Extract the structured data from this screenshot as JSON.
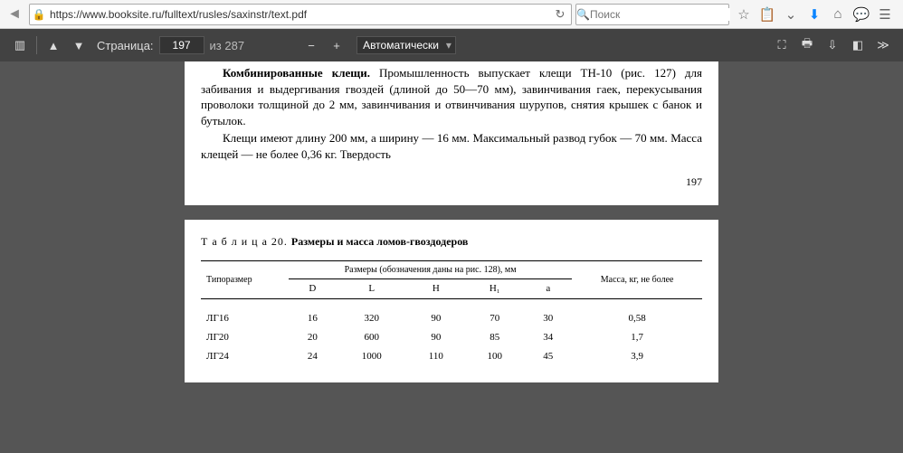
{
  "url": "https://www.booksite.ru/fulltext/rusles/saxinstr/text.pdf",
  "search_placeholder": "Поиск",
  "pdf": {
    "page_label": "Страница:",
    "current": "197",
    "total_label": "из 287",
    "zoom_label": "Автоматически"
  },
  "doc": {
    "p1_l1_bold": "Комбинированные клещи.",
    "p1_l1_rest": " Промышленность выпускает клещи ТН-10 (рис. 127) для забивания и выдергивания гвоздей (длиной до 50—70 мм), завинчивания гаек, перекусывания проволоки толщиной до 2 мм, завинчивания и отвинчивания шурупов, снятия крышек с банок и бутылок.",
    "p1_l2": "Клещи имеют длину 200 мм, а ширину — 16 мм. Максимальный развод губок — 70 мм. Масса клещей — не более 0,36 кг. Твердость",
    "page_num": "197",
    "table_prefix": "Т а б л и ц а   20. ",
    "table_title": "Размеры и масса ломов-гвоздодеров",
    "col_type": "Типоразмер",
    "col_dims": "Размеры (обозначения даны на рис. 128), мм",
    "col_mass": "Масса, кг, не более",
    "sub_d": "D",
    "sub_l": "L",
    "sub_h": "H",
    "sub_h1": "H₁",
    "sub_a": "a",
    "rows": [
      {
        "t": "ЛГ16",
        "d": "16",
        "l": "320",
        "h": "90",
        "h1": "70",
        "a": "30",
        "m": "0,58"
      },
      {
        "t": "ЛГ20",
        "d": "20",
        "l": "600",
        "h": "90",
        "h1": "85",
        "a": "34",
        "m": "1,7"
      },
      {
        "t": "ЛГ24",
        "d": "24",
        "l": "1000",
        "h": "110",
        "h1": "100",
        "a": "45",
        "m": "3,9"
      }
    ]
  }
}
